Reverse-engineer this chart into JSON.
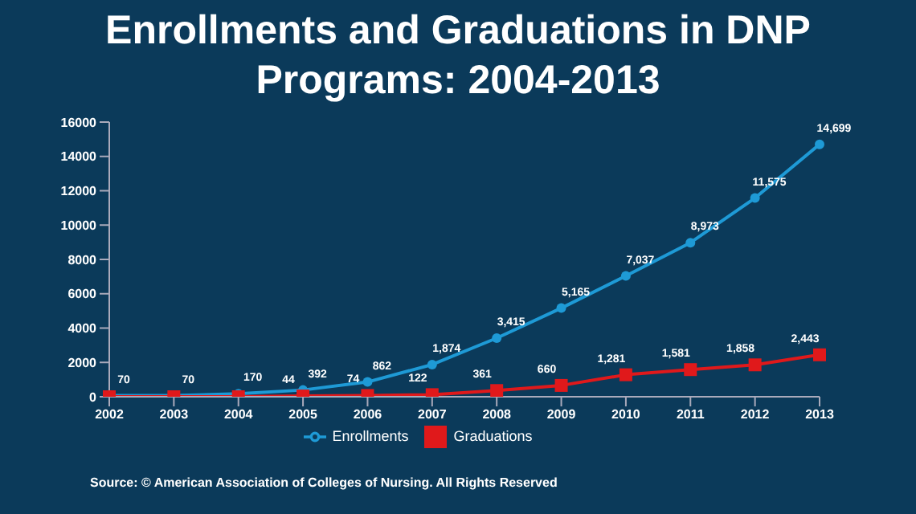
{
  "chart_data": {
    "type": "line",
    "title": "Enrollments and Graduations in DNP Programs: 2004-2013",
    "categories": [
      "2002",
      "2003",
      "2004",
      "2005",
      "2006",
      "2007",
      "2008",
      "2009",
      "2010",
      "2011",
      "2012",
      "2013"
    ],
    "series": [
      {
        "name": "Enrollments",
        "color": "#1e9ad6",
        "marker": "circle",
        "values": [
          70,
          70,
          170,
          392,
          862,
          1874,
          3415,
          5165,
          7037,
          8973,
          11575,
          14699
        ],
        "value_labels": [
          "70",
          "70",
          "170",
          "392",
          "862",
          "1,874",
          "3,415",
          "5,165",
          "7,037",
          "8,973",
          "11,575",
          "14,699"
        ]
      },
      {
        "name": "Graduations",
        "color": "#e0191b",
        "marker": "square",
        "values": [
          0,
          0,
          0,
          44,
          74,
          122,
          361,
          660,
          1281,
          1581,
          1858,
          2443
        ],
        "value_labels": [
          null,
          null,
          null,
          "44",
          "74",
          "122",
          "361",
          "660",
          "1,281",
          "1,581",
          "1,858",
          "2,443"
        ]
      }
    ],
    "ylim": [
      0,
      16000
    ],
    "yticks": [
      0,
      2000,
      4000,
      6000,
      8000,
      10000,
      12000,
      14000,
      16000
    ],
    "grid": false,
    "legend": "bottom",
    "annotations": [
      "Source: © American Association of Colleges of Nursing. All Rights Reserved"
    ]
  }
}
